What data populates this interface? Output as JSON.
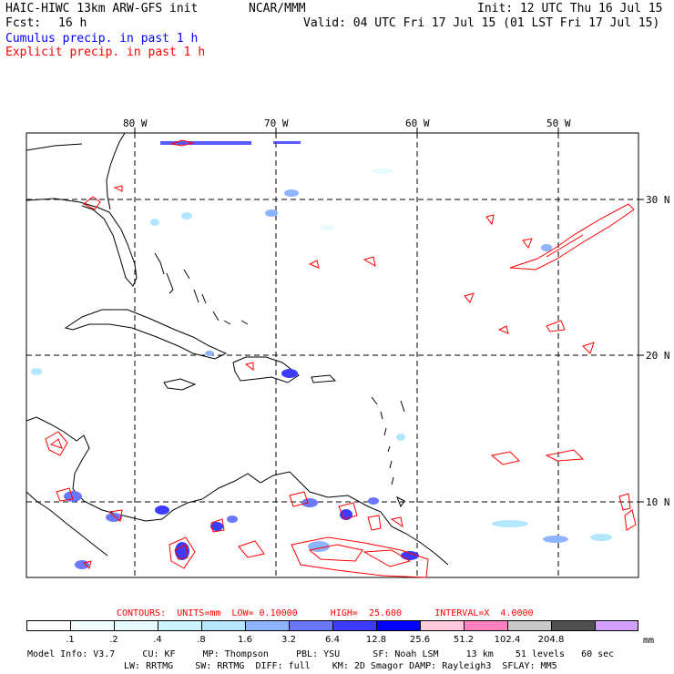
{
  "header": {
    "model": "HAIC-HIWC 13km ARW-GFS init",
    "org": "NCAR/MMM",
    "init": "Init: 12 UTC Thu 16 Jul 15",
    "fcst_label": "Fcst:",
    "fcst_value": "16 h",
    "valid": "Valid: 04 UTC Fri 17 Jul 15 (01 LST Fri 17 Jul 15)",
    "cumulus_legend": "Cumulus precip. in past 1 h",
    "explicit_legend": "Explicit precip. in past 1 h"
  },
  "colors": {
    "cumulus": "#0000ff",
    "explicit": "#ff0000",
    "grid": "#000000"
  },
  "map": {
    "lon_labels": [
      "80 W",
      "70 W",
      "60 W",
      "50 W"
    ],
    "lat_labels": [
      "30 N",
      "20 N",
      "10 N"
    ]
  },
  "contours": {
    "label": "CONTOURS:  UNITS=mm  LOW= 0.10000      HIGH=  25.600      INTERVAL=X  4.0000",
    "units": "mm",
    "low": 0.1,
    "high": 25.6,
    "interval_factor": 4.0
  },
  "colorbar": {
    "unit_label": "mm",
    "levels": [
      ".1",
      ".2",
      ".4",
      ".8",
      "1.6",
      "3.2",
      "6.4",
      "12.8",
      "25.6",
      "51.2",
      "102.4",
      "204.8"
    ],
    "colors": [
      "#ffffff",
      "#f2fdff",
      "#e6fbff",
      "#ccf4ff",
      "#b3e6ff",
      "#8fb4ff",
      "#6a78ff",
      "#3c3cff",
      "#0000ff",
      "#ffc8dc",
      "#ff80c0",
      "#c8c8c8",
      "#505050",
      "#d2a0ff"
    ]
  },
  "footer": {
    "line1": "Model Info: V3.7     CU: KF     MP: Thompson     PBL: YSU      SF: Noah LSM     13 km    51 levels   60 sec",
    "line2": "LW: RRTMG    SW: RRTMG  DIFF: full    KM: 2D Smagor DAMP: Rayleigh3  SFLAY: MM5"
  }
}
